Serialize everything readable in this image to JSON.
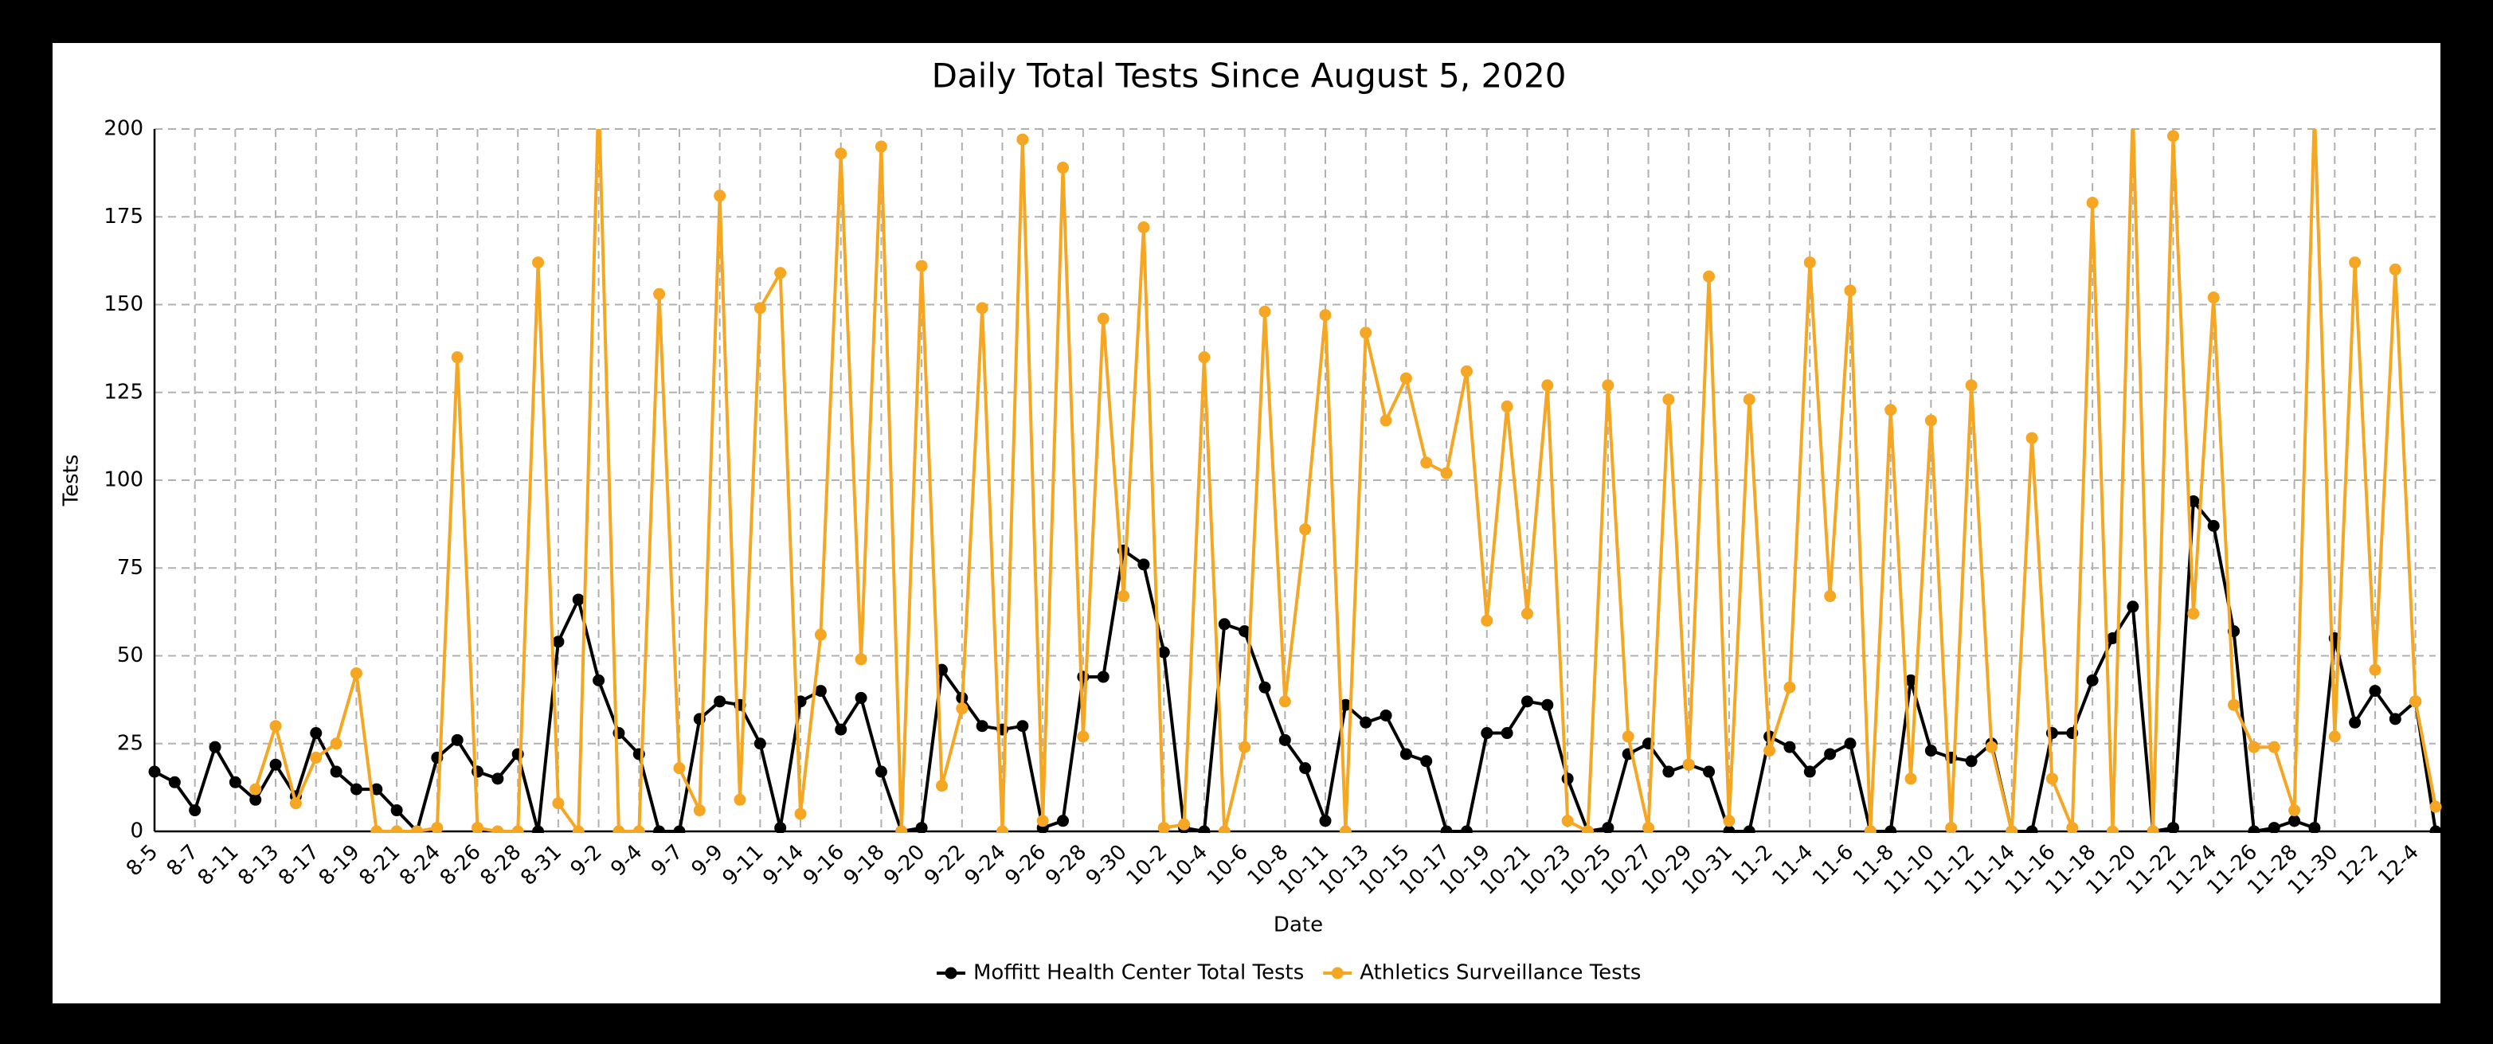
{
  "chart_data": {
    "type": "line",
    "title": "Daily Total Tests Since August 5, 2020",
    "x_label": "Date",
    "y_label": "Tests",
    "categories": [
      "8-5",
      null,
      "8-7",
      null,
      "8-11",
      null,
      "8-13",
      null,
      "8-17",
      null,
      "8-19",
      null,
      "8-21",
      null,
      "8-24",
      null,
      "8-26",
      null,
      "8-28",
      null,
      "8-31",
      null,
      "9-2",
      null,
      "9-4",
      null,
      "9-7",
      null,
      "9-9",
      null,
      "9-11",
      null,
      "9-14",
      null,
      "9-16",
      null,
      "9-18",
      null,
      "9-20",
      null,
      "9-22",
      null,
      "9-24",
      null,
      "9-26",
      null,
      "9-28",
      null,
      "9-30",
      null,
      "10-2",
      null,
      "10-4",
      null,
      "10-6",
      null,
      "10-8",
      null,
      "10-11",
      null,
      "10-13",
      null,
      "10-15",
      null,
      "10-17",
      null,
      "10-19",
      null,
      "10-21",
      null,
      "10-23",
      null,
      "10-25",
      null,
      "10-27",
      null,
      "10-29",
      null,
      "10-31",
      null,
      "11-2",
      null,
      "11-4",
      null,
      "11-6",
      null,
      "11-8",
      null,
      "11-10",
      null,
      "11-12",
      null,
      "11-14",
      null,
      "11-16",
      null,
      "11-18",
      null,
      "11-20",
      null,
      "11-22",
      null,
      "11-24",
      null,
      "11-26",
      null,
      "11-28",
      null,
      "11-30",
      null,
      "12-2",
      null,
      "12-4",
      null
    ],
    "series": [
      {
        "name": "Moffitt Health Center Total Tests",
        "color": "#000000",
        "values": [
          17,
          14,
          6,
          24,
          14,
          9,
          19,
          10,
          28,
          17,
          12,
          12,
          6,
          0,
          21,
          26,
          17,
          15,
          22,
          0,
          54,
          66,
          43,
          28,
          22,
          0,
          0,
          32,
          37,
          36,
          25,
          1,
          37,
          40,
          29,
          38,
          17,
          0,
          1,
          46,
          38,
          30,
          29,
          30,
          1,
          3,
          44,
          44,
          80,
          76,
          51,
          1,
          0,
          59,
          57,
          41,
          26,
          18,
          3,
          36,
          31,
          33,
          22,
          20,
          0,
          0,
          28,
          28,
          37,
          36,
          15,
          0,
          1,
          22,
          25,
          17,
          19,
          17,
          0,
          0,
          27,
          24,
          17,
          22,
          25,
          0,
          0,
          43,
          23,
          21,
          20,
          25,
          0,
          0,
          28,
          28,
          43,
          55,
          64,
          0,
          1,
          94,
          87,
          57,
          0,
          1,
          3,
          1,
          55,
          31,
          40,
          32,
          37,
          0
        ]
      },
      {
        "name": "Athletics Surveillance Tests",
        "color": "#f5a623",
        "values": [
          null,
          null,
          null,
          null,
          null,
          12,
          30,
          8,
          21,
          25,
          45,
          0,
          0,
          0,
          1,
          135,
          1,
          0,
          0,
          162,
          8,
          0,
          210,
          0,
          0,
          153,
          18,
          6,
          181,
          9,
          149,
          159,
          5,
          56,
          193,
          49,
          195,
          0,
          161,
          13,
          35,
          149,
          0,
          197,
          3,
          189,
          27,
          146,
          67,
          172,
          1,
          2,
          135,
          0,
          24,
          148,
          37,
          86,
          147,
          0,
          142,
          117,
          129,
          105,
          102,
          131,
          60,
          121,
          62,
          127,
          3,
          0,
          127,
          27,
          1,
          123,
          19,
          158,
          3,
          123,
          23,
          41,
          162,
          67,
          154,
          0,
          120,
          15,
          117,
          1,
          127,
          24,
          0,
          112,
          15,
          1,
          179,
          0,
          205,
          0,
          198,
          62,
          152,
          36,
          24,
          24,
          6,
          205,
          27,
          162,
          46,
          160,
          37,
          7
        ]
      }
    ],
    "ylim": [
      0,
      200
    ],
    "yticks": [
      0,
      25,
      50,
      75,
      100,
      125,
      150,
      175,
      200
    ],
    "grid": true,
    "legend": "bottom"
  }
}
